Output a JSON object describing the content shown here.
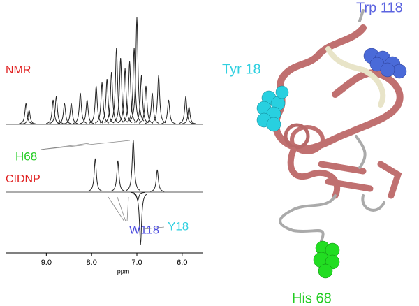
{
  "chart_data": {
    "type": "spectrum",
    "x_label": "ppm",
    "xlim": [
      9.9,
      5.55
    ],
    "xticks": [
      {
        "value": 9,
        "label": "9.0"
      },
      {
        "value": 8,
        "label": "8.0"
      },
      {
        "value": 7,
        "label": "7.0"
      },
      {
        "value": 6,
        "label": "6.0"
      }
    ],
    "series": [
      {
        "name": "NMR",
        "color": "#e02020",
        "x": [
          9.45,
          9.38,
          8.85,
          8.78,
          8.6,
          8.45,
          8.25,
          8.1,
          7.9,
          7.77,
          7.66,
          7.56,
          7.45,
          7.36,
          7.26,
          7.16,
          7.06,
          7.0,
          6.9,
          6.8,
          6.66,
          6.52,
          6.3,
          5.92,
          5.85
        ],
        "values": [
          30,
          20,
          35,
          40,
          30,
          30,
          45,
          35,
          55,
          60,
          65,
          75,
          110,
          95,
          80,
          90,
          110,
          153,
          70,
          55,
          45,
          70,
          35,
          40,
          25
        ]
      },
      {
        "name": "CIDNP",
        "color": "#e02020",
        "x": [
          7.92,
          7.42,
          7.08,
          6.98,
          6.92,
          6.55
        ],
        "values": [
          48,
          45,
          75,
          -12,
          -75,
          32
        ]
      }
    ],
    "annotations": [
      {
        "text": "H68",
        "color": "#22cc22"
      },
      {
        "text": "W118",
        "color": "#5050e0"
      },
      {
        "text": "Y18",
        "color": "#30d0e0"
      }
    ],
    "structure_labels": [
      {
        "text": "Trp 118",
        "color": "#5b63e0"
      },
      {
        "text": "Tyr 18",
        "color": "#30d0e0"
      },
      {
        "text": "His 68",
        "color": "#22cc22"
      }
    ]
  }
}
